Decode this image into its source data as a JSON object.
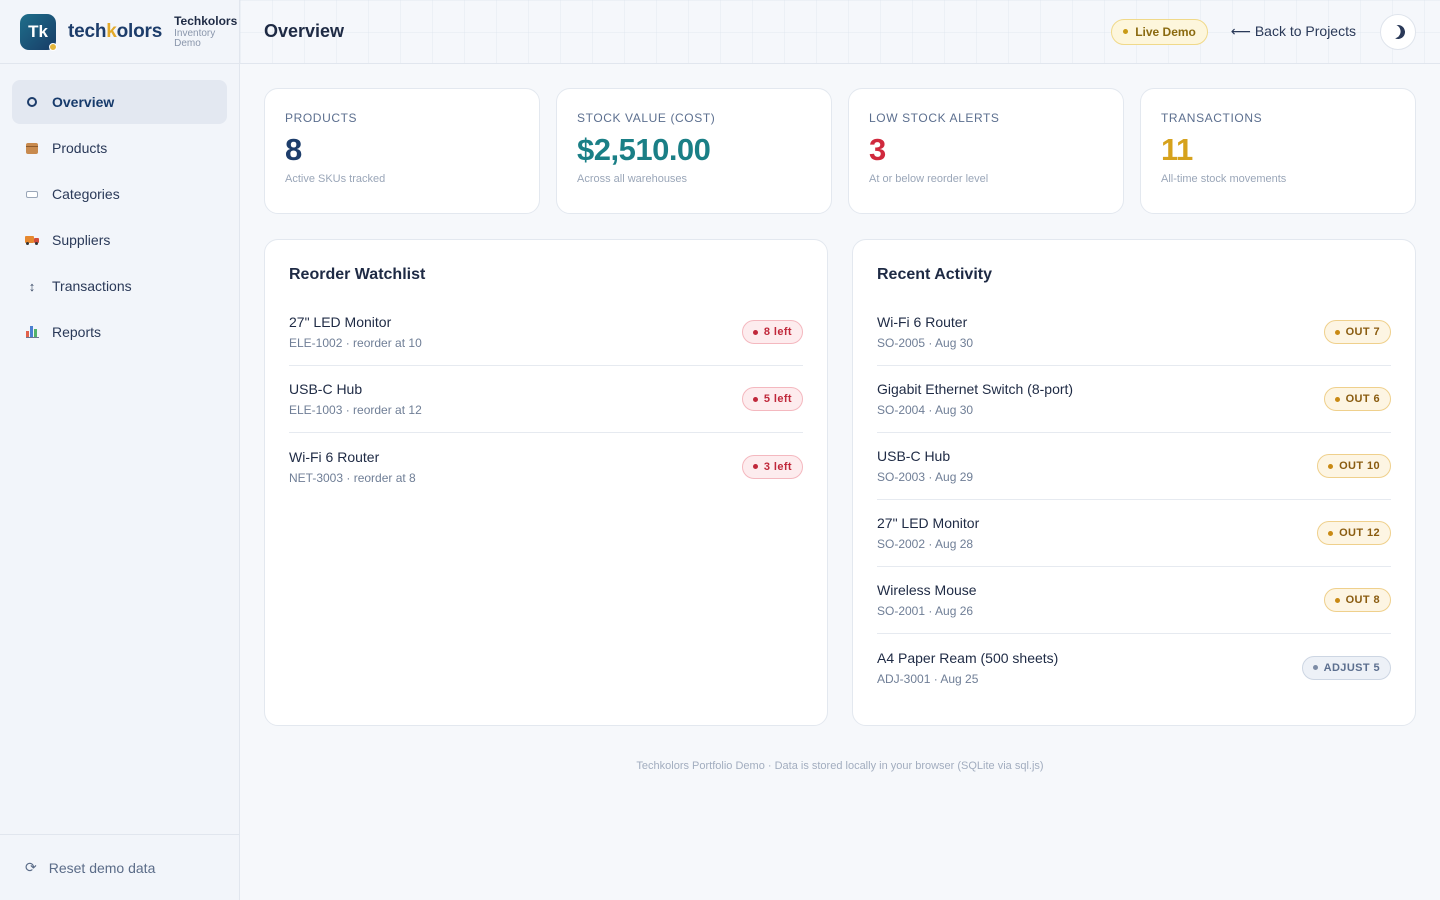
{
  "brand": {
    "logo": "Tk",
    "wordmark_a": "tech",
    "wordmark_k": "k",
    "wordmark_b": "olors",
    "name": "Techkolors",
    "sub1": "Inventory",
    "sub2": "Demo"
  },
  "nav": [
    {
      "label": "Overview",
      "icon": "overview-icon",
      "active": true
    },
    {
      "label": "Products",
      "icon": "package-icon"
    },
    {
      "label": "Categories",
      "icon": "tag-icon"
    },
    {
      "label": "Suppliers",
      "icon": "truck-icon"
    },
    {
      "label": "Transactions",
      "icon": "up-down-arrow-icon"
    },
    {
      "label": "Reports",
      "icon": "bar-chart-icon"
    }
  ],
  "sidebar_footer": {
    "label": "Reset demo data",
    "icon_glyph": "⟳"
  },
  "header": {
    "title": "Overview",
    "badge": "Live Demo",
    "back_link": "⟵ Back to Projects"
  },
  "stats": [
    {
      "label": "PRODUCTS",
      "value": "8",
      "sub": "Active SKUs tracked",
      "color": "#1d3d6b"
    },
    {
      "label": "STOCK VALUE (COST)",
      "value": "$2,510.00",
      "sub": "Across all warehouses",
      "color": "#1a7f86"
    },
    {
      "label": "LOW STOCK ALERTS",
      "value": "3",
      "sub": "At or below reorder level",
      "color": "#d0293d"
    },
    {
      "label": "TRANSACTIONS",
      "value": "11",
      "sub": "All-time stock movements",
      "color": "#d6a21d"
    }
  ],
  "watchlist": {
    "title": "Reorder Watchlist",
    "items": [
      {
        "name": "27\" LED Monitor",
        "meta": "ELE-1002 · reorder at 10",
        "badge": "8 left"
      },
      {
        "name": "USB-C Hub",
        "meta": "ELE-1003 · reorder at 12",
        "badge": "5 left"
      },
      {
        "name": "Wi-Fi 6 Router",
        "meta": "NET-3003 · reorder at 8",
        "badge": "3 left"
      }
    ]
  },
  "activity": {
    "title": "Recent Activity",
    "items": [
      {
        "name": "Wi-Fi 6 Router",
        "meta": "SO-2005 · Aug 30",
        "badge": "OUT 7",
        "kind": "amber"
      },
      {
        "name": "Gigabit Ethernet Switch (8-port)",
        "meta": "SO-2004 · Aug 30",
        "badge": "OUT 6",
        "kind": "amber"
      },
      {
        "name": "USB-C Hub",
        "meta": "SO-2003 · Aug 29",
        "badge": "OUT 10",
        "kind": "amber"
      },
      {
        "name": "27\" LED Monitor",
        "meta": "SO-2002 · Aug 28",
        "badge": "OUT 12",
        "kind": "amber"
      },
      {
        "name": "Wireless Mouse",
        "meta": "SO-2001 · Aug 26",
        "badge": "OUT 8",
        "kind": "amber"
      },
      {
        "name": "A4 Paper Ream (500 sheets)",
        "meta": "ADJ-3001 · Aug 25",
        "badge": "ADJUST 5",
        "kind": "gray"
      }
    ]
  },
  "footer": "Techkolors Portfolio Demo · Data is stored locally in your browser (SQLite via sql.js)"
}
